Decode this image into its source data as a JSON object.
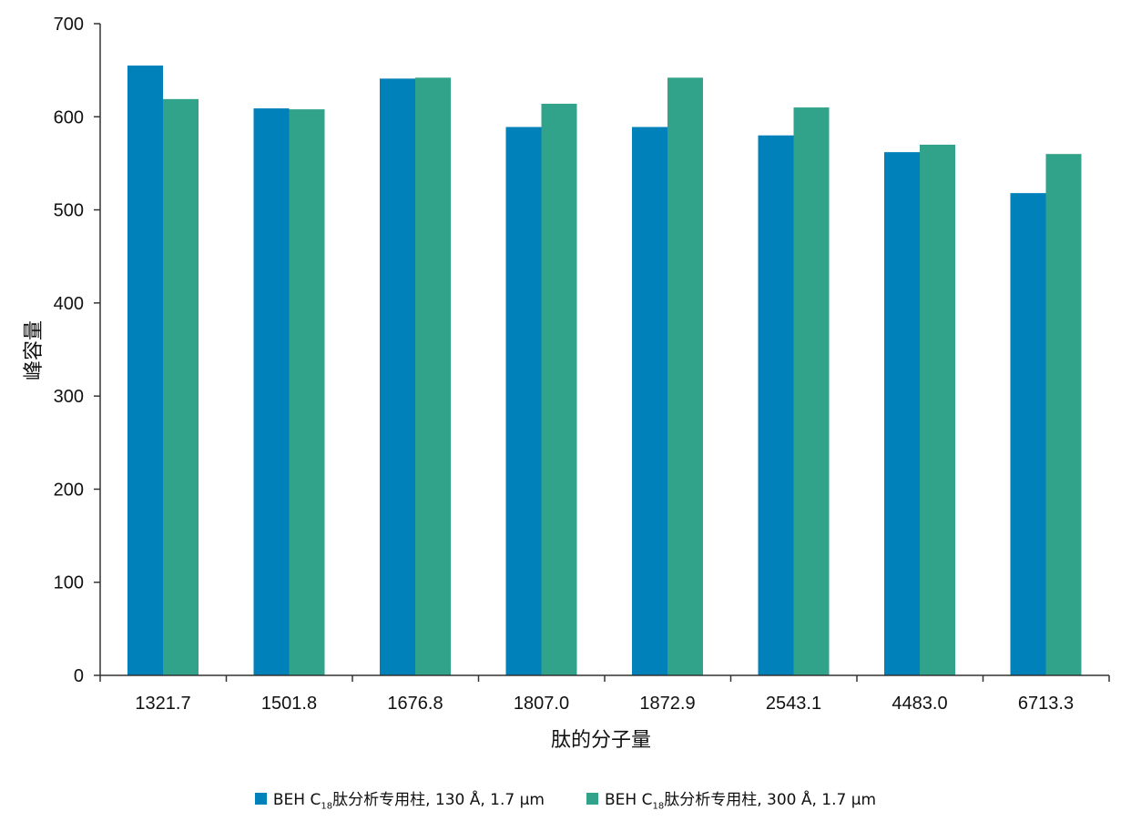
{
  "chart_data": {
    "type": "bar",
    "title": "",
    "xlabel": "肽的分子量",
    "ylabel": "峰容量",
    "ylim": [
      0,
      700
    ],
    "yticks": [
      0,
      100,
      200,
      300,
      400,
      500,
      600,
      700
    ],
    "categories": [
      "1321.7",
      "1501.8",
      "1676.8",
      "1807.0",
      "1872.9",
      "2543.1",
      "4483.0",
      "6713.3"
    ],
    "series": [
      {
        "label_prefix": "BEH C",
        "label_subscript": "18",
        "label_suffix": "肽分析专用柱, 130 Å, 1.7 μm",
        "color": "#0081b9",
        "values": [
          655,
          609,
          641,
          589,
          589,
          580,
          562,
          518
        ]
      },
      {
        "label_prefix": "BEH C",
        "label_subscript": "18",
        "label_suffix": "肽分析专用柱, 300 Å, 1.7 μm",
        "color": "#31a38b",
        "values": [
          619,
          608,
          642,
          614,
          642,
          610,
          570,
          560
        ]
      }
    ],
    "grid": false,
    "legend_position": "bottom"
  }
}
